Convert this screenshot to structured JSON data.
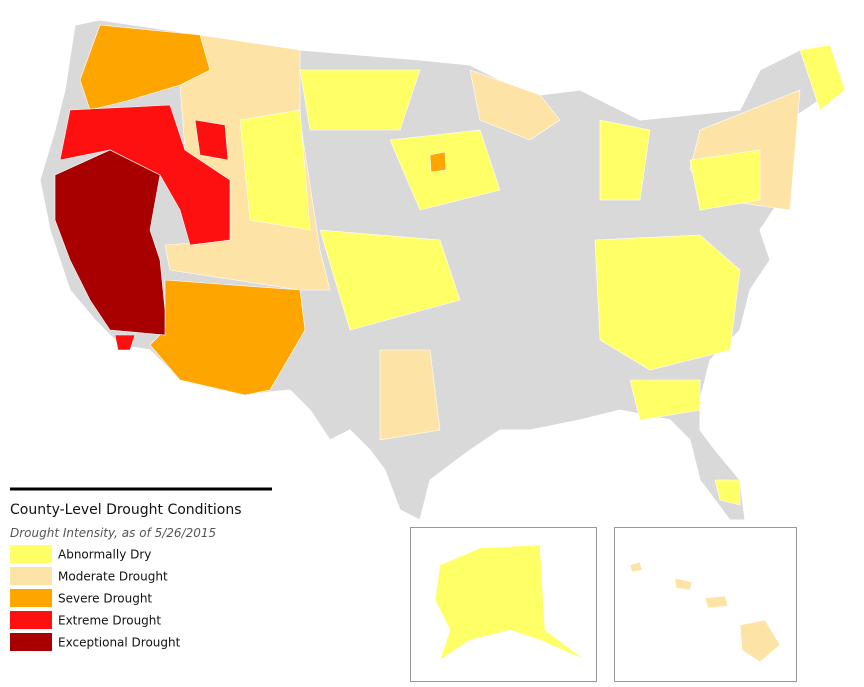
{
  "legend": {
    "title": "County-Level Drought Conditions",
    "subtitle": "Drought Intensity, as of 5/26/2015",
    "items": [
      {
        "label": "Abnormally Dry",
        "color": "#ffff66"
      },
      {
        "label": "Moderate Drought",
        "color": "#fde4a6"
      },
      {
        "label": "Severe Drought",
        "color": "#ffa500"
      },
      {
        "label": "Extreme Drought",
        "color": "#ff1010"
      },
      {
        "label": "Exceptional Drought",
        "color": "#a80000"
      }
    ]
  }
}
